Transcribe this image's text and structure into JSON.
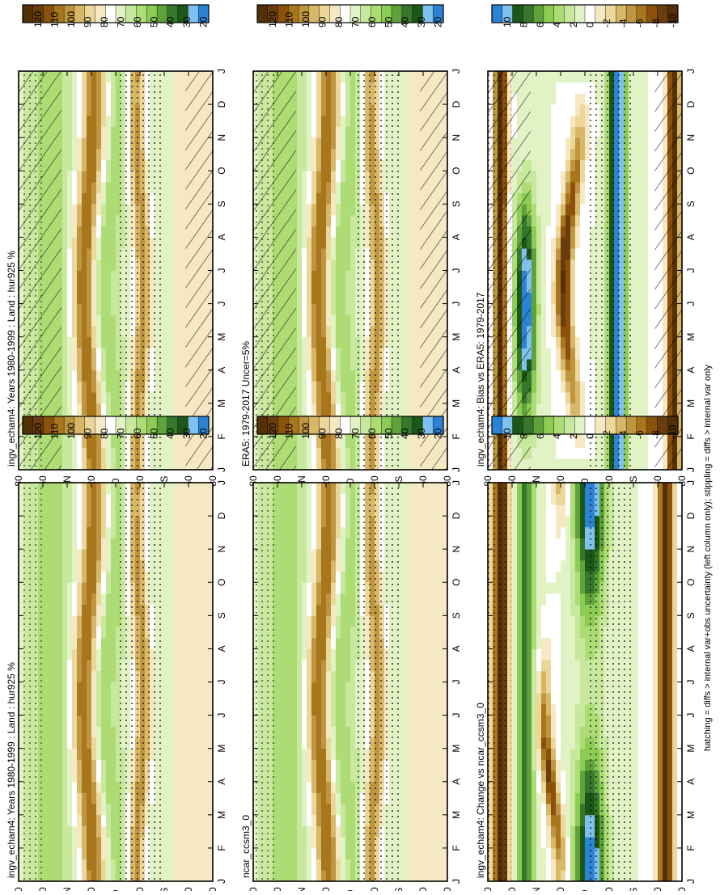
{
  "figure": {
    "footnote": "hatching = diffs > internal var+obs uncertainty (left column only); stippling = diffs > internal var only"
  },
  "colors": {
    "hur": [
      "#543005",
      "#6a3d0f",
      "#8c510a",
      "#a8761c",
      "#bf9540",
      "#d8b868",
      "#ecd79a",
      "#f6e8c3",
      "#ffffff",
      "#e1f2c5",
      "#c7e89d",
      "#aedc74",
      "#8ccb54",
      "#5fa23b",
      "#36782b",
      "#1d5718",
      "#7ec0ee",
      "#2b83d6"
    ],
    "diff": [
      "#2b83d6",
      "#7ec0ee",
      "#1d5718",
      "#36782b",
      "#5fa23b",
      "#8ccb54",
      "#aedc74",
      "#c7e89d",
      "#e1f2c5",
      "#ffffff",
      "#f6e8c3",
      "#ecd79a",
      "#d8b868",
      "#bf9540",
      "#a8761c",
      "#8c510a",
      "#6a3d0f",
      "#543005"
    ]
  },
  "chart_data": [
    {
      "type": "heatmap",
      "title": "ingv_echam4: Years 1980-1999 : Land : hur925 %",
      "x_tick_labels": [
        "J",
        "F",
        "M",
        "A",
        "M",
        "J",
        "J",
        "A",
        "S",
        "O",
        "N",
        "D",
        "J"
      ],
      "y_tick_labels": [
        "80",
        "60",
        "°N",
        "20",
        "0",
        "20",
        "°S",
        "60",
        "80"
      ],
      "y_ticks_values": [
        80,
        60,
        40,
        20,
        0,
        -20,
        -40,
        -60,
        -80
      ],
      "colorbar_labels": [
        "120",
        "110",
        "100",
        "90",
        "80",
        "70",
        "60",
        "50",
        "40",
        "30",
        "20"
      ],
      "colorbar_range": [
        20,
        120
      ],
      "palette": "hur",
      "hatched": true,
      "stippled": true
    },
    {
      "type": "heatmap",
      "title": "ingv_echam4: Years 1980-1999 : Land : hur925 %",
      "x_tick_labels": [
        "J",
        "F",
        "M",
        "A",
        "M",
        "J",
        "J",
        "A",
        "S",
        "O",
        "N",
        "D",
        "J"
      ],
      "y_tick_labels": [
        "80",
        "60",
        "°N",
        "20",
        "0",
        "20",
        "°S",
        "60",
        "80"
      ],
      "y_ticks_values": [
        80,
        60,
        40,
        20,
        0,
        -20,
        -40,
        -60,
        -80
      ],
      "colorbar_labels": [
        "120",
        "110",
        "100",
        "90",
        "80",
        "70",
        "60",
        "50",
        "40",
        "30",
        "20"
      ],
      "colorbar_range": [
        20,
        120
      ],
      "palette": "hur",
      "hatched": false,
      "stippled": true
    },
    {
      "type": "heatmap",
      "title": "ERA5: 1979-2017 Uncer=5%",
      "x_tick_labels": [
        "J",
        "F",
        "M",
        "A",
        "M",
        "J",
        "J",
        "A",
        "S",
        "O",
        "N",
        "D",
        "J"
      ],
      "y_tick_labels": [
        "80",
        "60",
        "°N",
        "20",
        "0",
        "20",
        "°S",
        "60",
        "80"
      ],
      "y_ticks_values": [
        80,
        60,
        40,
        20,
        0,
        -20,
        -40,
        -60,
        -80
      ],
      "colorbar_labels": [
        "120",
        "110",
        "100",
        "90",
        "80",
        "70",
        "60",
        "50",
        "40",
        "30",
        "20"
      ],
      "colorbar_range": [
        20,
        120
      ],
      "palette": "hur",
      "hatched": true,
      "stippled": true
    },
    {
      "type": "heatmap",
      "title": "ncar_ccsm3_0",
      "x_tick_labels": [
        "J",
        "F",
        "M",
        "A",
        "M",
        "J",
        "J",
        "A",
        "S",
        "O",
        "N",
        "D",
        "J"
      ],
      "y_tick_labels": [
        "80",
        "60",
        "°N",
        "20",
        "0",
        "20",
        "°S",
        "60",
        "80"
      ],
      "y_ticks_values": [
        80,
        60,
        40,
        20,
        0,
        -20,
        -40,
        -60,
        -80
      ],
      "colorbar_labels": [
        "120",
        "110",
        "100",
        "90",
        "80",
        "70",
        "60",
        "50",
        "40",
        "30",
        "20"
      ],
      "colorbar_range": [
        20,
        120
      ],
      "palette": "hur",
      "hatched": false,
      "stippled": true
    },
    {
      "type": "heatmap",
      "title": "ingv_echam4: Bias vs ERA5: 1979-2017",
      "x_tick_labels": [
        "J",
        "F",
        "M",
        "A",
        "M",
        "J",
        "J",
        "A",
        "S",
        "O",
        "N",
        "D",
        "J"
      ],
      "y_tick_labels": [
        "80",
        "60",
        "°N",
        "20",
        "0",
        "20",
        "°S",
        "60",
        "80"
      ],
      "y_ticks_values": [
        80,
        60,
        40,
        20,
        0,
        -20,
        -40,
        -60,
        -80
      ],
      "colorbar_labels": [
        "10",
        "8",
        "6",
        "4",
        "2",
        "0",
        "-2",
        "-4",
        "-6",
        "-8",
        "-10"
      ],
      "colorbar_range": [
        -10,
        10
      ],
      "palette": "diff",
      "hatched": true,
      "stippled": true
    },
    {
      "type": "heatmap",
      "title": "ingv_echam4: Change vs ncar_ccsm3_0",
      "x_tick_labels": [
        "J",
        "F",
        "M",
        "A",
        "M",
        "J",
        "J",
        "A",
        "S",
        "O",
        "N",
        "D",
        "J"
      ],
      "y_tick_labels": [
        "80",
        "60",
        "°N",
        "20",
        "0",
        "20",
        "°S",
        "60",
        "80"
      ],
      "y_ticks_values": [
        80,
        60,
        40,
        20,
        0,
        -20,
        -40,
        -60,
        -80
      ],
      "colorbar_labels": [
        "10",
        "8",
        "6",
        "4",
        "2",
        "0",
        "-2",
        "-4",
        "-6",
        "-8",
        "-10"
      ],
      "colorbar_range": [
        -10,
        10
      ],
      "palette": "diff",
      "hatched": false,
      "stippled": true
    }
  ]
}
